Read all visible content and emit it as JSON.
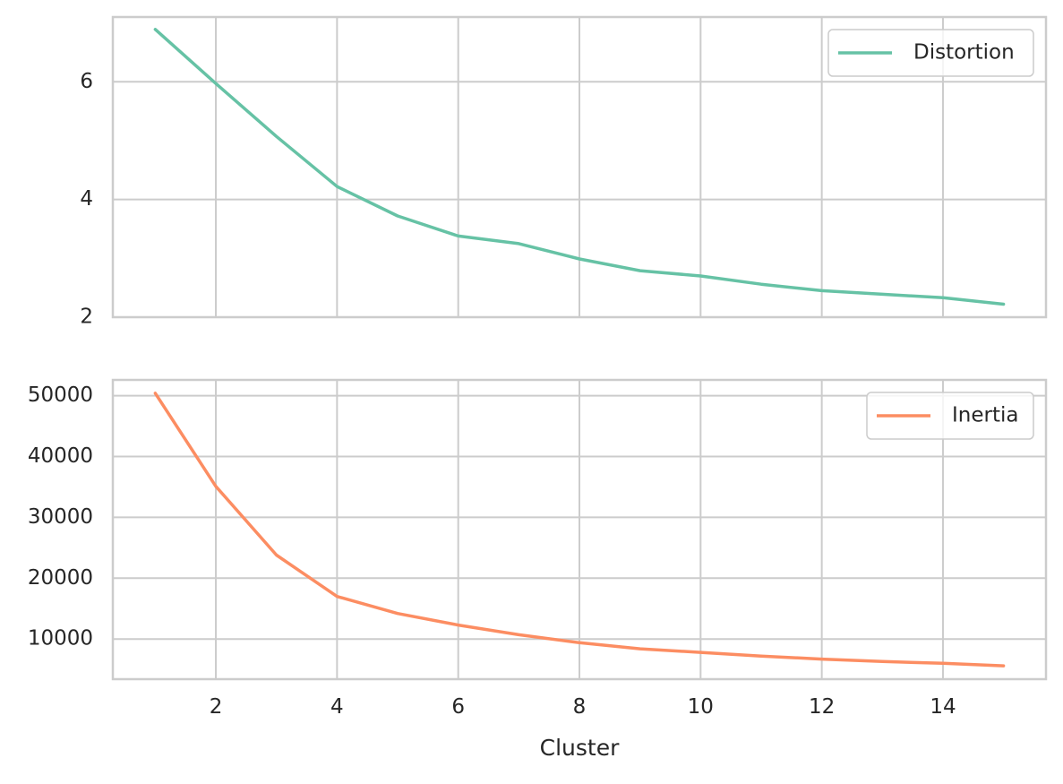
{
  "chart_data": [
    {
      "type": "line",
      "title": "",
      "xlabel": "",
      "ylabel": "",
      "x": [
        1,
        2,
        3,
        4,
        5,
        6,
        7,
        8,
        9,
        10,
        11,
        12,
        13,
        14,
        15
      ],
      "xlim": [
        0.3,
        15.7
      ],
      "ylim": [
        2.0,
        7.1
      ],
      "xticks": [
        2,
        4,
        6,
        8,
        10,
        12,
        14
      ],
      "xticklabels_visible": false,
      "yticks": [
        2,
        4,
        6
      ],
      "yticklabels": [
        "2",
        "4",
        "6"
      ],
      "grid": true,
      "legend_loc": "top-right",
      "series": [
        {
          "name": "Distortion",
          "color": "#66c2a5",
          "values": [
            6.89,
            5.97,
            5.07,
            4.22,
            3.72,
            3.38,
            3.25,
            2.99,
            2.79,
            2.7,
            2.56,
            2.45,
            2.39,
            2.33,
            2.22
          ]
        }
      ]
    },
    {
      "type": "line",
      "title": "",
      "xlabel": "Cluster",
      "ylabel": "",
      "x": [
        1,
        2,
        3,
        4,
        5,
        6,
        7,
        8,
        9,
        10,
        11,
        12,
        13,
        14,
        15
      ],
      "xlim": [
        0.3,
        15.7
      ],
      "ylim": [
        3400,
        52600
      ],
      "xticks": [
        2,
        4,
        6,
        8,
        10,
        12,
        14
      ],
      "xticklabels": [
        "2",
        "4",
        "6",
        "8",
        "10",
        "12",
        "14"
      ],
      "yticks": [
        10000,
        20000,
        30000,
        40000,
        50000
      ],
      "yticklabels": [
        "10000",
        "20000",
        "30000",
        "40000",
        "50000"
      ],
      "grid": true,
      "legend_loc": "top-right",
      "series": [
        {
          "name": "Inertia",
          "color": "#fc8d62",
          "values": [
            50400,
            35100,
            23800,
            17000,
            14200,
            12300,
            10700,
            9400,
            8400,
            7800,
            7200,
            6700,
            6300,
            6000,
            5600
          ]
        }
      ]
    }
  ]
}
